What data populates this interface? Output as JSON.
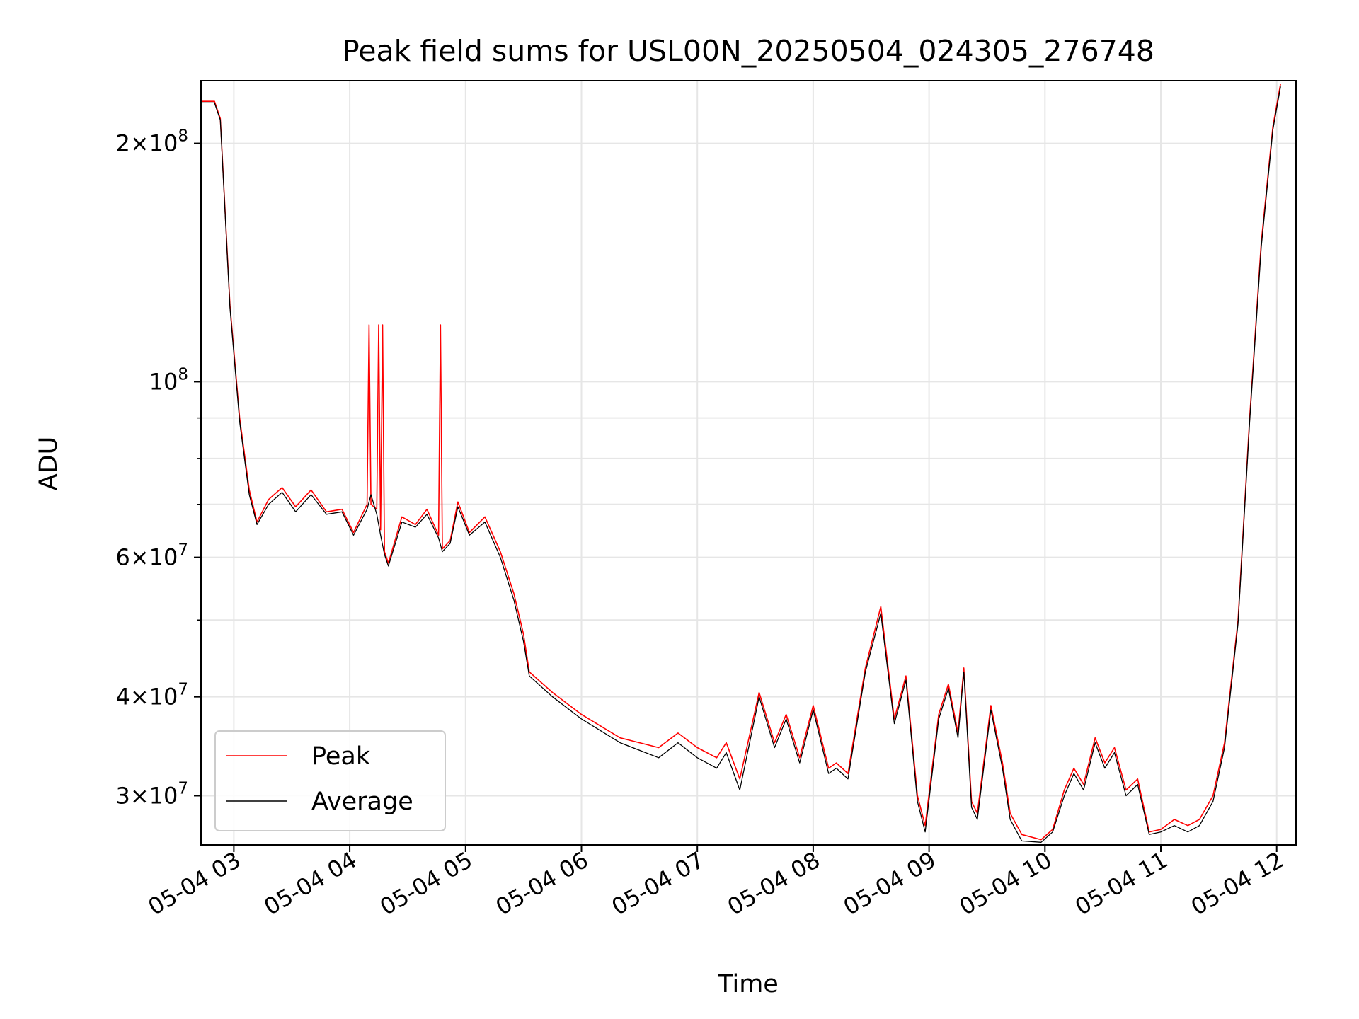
{
  "chart_data": {
    "type": "line",
    "title": "Peak field sums for USL00N_20250504_024305_276748",
    "xlabel": "Time",
    "ylabel": "ADU",
    "y_scale": "log",
    "xlim": [
      "2025-05-04 02:43",
      "2025-05-04 12:10"
    ],
    "ylim": [
      26000000,
      240000000
    ],
    "grid": true,
    "legend_placement": "lower-left",
    "x_tick_labels": [
      "05-04 03",
      "05-04 04",
      "05-04 05",
      "05-04 06",
      "05-04 07",
      "05-04 08",
      "05-04 09",
      "05-04 10",
      "05-04 11",
      "05-04 12"
    ],
    "y_tick_labels": [
      {
        "value": 200000000,
        "mant": "2",
        "exp": "8"
      },
      {
        "value": 100000000,
        "mant": "",
        "exp": "8"
      },
      {
        "value": 60000000,
        "mant": "6",
        "exp": "7"
      },
      {
        "value": 40000000,
        "mant": "4",
        "exp": "7"
      },
      {
        "value": 30000000,
        "mant": "3",
        "exp": "7"
      }
    ],
    "series": [
      {
        "name": "Peak",
        "color": "#ff0000",
        "points": [
          [
            "2025-05-04 02:43",
            226000000
          ],
          [
            "2025-05-04 02:50",
            226000000
          ],
          [
            "2025-05-04 02:53",
            215000000
          ],
          [
            "2025-05-04 02:58",
            125000000
          ],
          [
            "2025-05-04 03:03",
            90000000
          ],
          [
            "2025-05-04 03:08",
            73000000
          ],
          [
            "2025-05-04 03:12",
            66500000
          ],
          [
            "2025-05-04 03:18",
            71000000
          ],
          [
            "2025-05-04 03:25",
            73500000
          ],
          [
            "2025-05-04 03:32",
            69500000
          ],
          [
            "2025-05-04 03:40",
            73000000
          ],
          [
            "2025-05-04 03:48",
            68500000
          ],
          [
            "2025-05-04 03:56",
            69000000
          ],
          [
            "2025-05-04 04:02",
            64500000
          ],
          [
            "2025-05-04 04:09",
            70000000
          ],
          [
            "2025-05-04 04:10",
            118000000
          ],
          [
            "2025-05-04 04:11",
            70000000
          ],
          [
            "2025-05-04 04:14",
            69000000
          ],
          [
            "2025-05-04 04:15",
            118000000
          ],
          [
            "2025-05-04 04:16",
            65000000
          ],
          [
            "2025-05-04 04:17",
            118000000
          ],
          [
            "2025-05-04 04:18",
            61000000
          ],
          [
            "2025-05-04 04:20",
            59000000
          ],
          [
            "2025-05-04 04:27",
            67500000
          ],
          [
            "2025-05-04 04:34",
            66000000
          ],
          [
            "2025-05-04 04:40",
            69000000
          ],
          [
            "2025-05-04 04:46",
            64000000
          ],
          [
            "2025-05-04 04:47",
            118000000
          ],
          [
            "2025-05-04 04:48",
            61500000
          ],
          [
            "2025-05-04 04:52",
            63000000
          ],
          [
            "2025-05-04 04:56",
            70500000
          ],
          [
            "2025-05-04 05:02",
            64500000
          ],
          [
            "2025-05-04 05:10",
            67500000
          ],
          [
            "2025-05-04 05:18",
            61000000
          ],
          [
            "2025-05-04 05:25",
            54000000
          ],
          [
            "2025-05-04 05:30",
            48000000
          ],
          [
            "2025-05-04 05:33",
            43000000
          ],
          [
            "2025-05-04 05:45",
            40500000
          ],
          [
            "2025-05-04 06:00",
            38000000
          ],
          [
            "2025-05-04 06:20",
            35500000
          ],
          [
            "2025-05-04 06:40",
            34500000
          ],
          [
            "2025-05-04 06:50",
            36000000
          ],
          [
            "2025-05-04 07:00",
            34500000
          ],
          [
            "2025-05-04 07:10",
            33500000
          ],
          [
            "2025-05-04 07:15",
            35000000
          ],
          [
            "2025-05-04 07:22",
            31500000
          ],
          [
            "2025-05-04 07:32",
            40500000
          ],
          [
            "2025-05-04 07:40",
            35000000
          ],
          [
            "2025-05-04 07:46",
            38000000
          ],
          [
            "2025-05-04 07:53",
            33500000
          ],
          [
            "2025-05-04 08:00",
            39000000
          ],
          [
            "2025-05-04 08:08",
            32500000
          ],
          [
            "2025-05-04 08:12",
            33000000
          ],
          [
            "2025-05-04 08:18",
            32000000
          ],
          [
            "2025-05-04 08:27",
            43500000
          ],
          [
            "2025-05-04 08:35",
            52000000
          ],
          [
            "2025-05-04 08:42",
            37500000
          ],
          [
            "2025-05-04 08:48",
            42500000
          ],
          [
            "2025-05-04 08:54",
            30000000
          ],
          [
            "2025-05-04 08:58",
            27500000
          ],
          [
            "2025-05-04 09:05",
            38000000
          ],
          [
            "2025-05-04 09:10",
            41500000
          ],
          [
            "2025-05-04 09:15",
            36000000
          ],
          [
            "2025-05-04 09:18",
            43500000
          ],
          [
            "2025-05-04 09:22",
            29500000
          ],
          [
            "2025-05-04 09:25",
            28500000
          ],
          [
            "2025-05-04 09:32",
            39000000
          ],
          [
            "2025-05-04 09:38",
            33000000
          ],
          [
            "2025-05-04 09:42",
            28500000
          ],
          [
            "2025-05-04 09:48",
            26800000
          ],
          [
            "2025-05-04 09:58",
            26400000
          ],
          [
            "2025-05-04 10:04",
            27200000
          ],
          [
            "2025-05-04 10:10",
            30500000
          ],
          [
            "2025-05-04 10:15",
            32500000
          ],
          [
            "2025-05-04 10:20",
            31000000
          ],
          [
            "2025-05-04 10:26",
            35500000
          ],
          [
            "2025-05-04 10:31",
            33000000
          ],
          [
            "2025-05-04 10:36",
            34500000
          ],
          [
            "2025-05-04 10:42",
            30500000
          ],
          [
            "2025-05-04 10:48",
            31500000
          ],
          [
            "2025-05-04 10:54",
            27000000
          ],
          [
            "2025-05-04 11:00",
            27200000
          ],
          [
            "2025-05-04 11:07",
            28000000
          ],
          [
            "2025-05-04 11:14",
            27500000
          ],
          [
            "2025-05-04 11:20",
            28000000
          ],
          [
            "2025-05-04 11:27",
            30000000
          ],
          [
            "2025-05-04 11:33",
            35000000
          ],
          [
            "2025-05-04 11:40",
            50000000
          ],
          [
            "2025-05-04 11:46",
            90000000
          ],
          [
            "2025-05-04 11:52",
            150000000
          ],
          [
            "2025-05-04 11:58",
            210000000
          ],
          [
            "2025-05-04 12:02",
            238000000
          ]
        ]
      },
      {
        "name": "Average",
        "color": "#000000",
        "points": [
          [
            "2025-05-04 02:43",
            225000000
          ],
          [
            "2025-05-04 02:50",
            225000000
          ],
          [
            "2025-05-04 02:53",
            214000000
          ],
          [
            "2025-05-04 02:58",
            124000000
          ],
          [
            "2025-05-04 03:03",
            89000000
          ],
          [
            "2025-05-04 03:08",
            72000000
          ],
          [
            "2025-05-04 03:12",
            66000000
          ],
          [
            "2025-05-04 03:18",
            70000000
          ],
          [
            "2025-05-04 03:25",
            72500000
          ],
          [
            "2025-05-04 03:32",
            68500000
          ],
          [
            "2025-05-04 03:40",
            72000000
          ],
          [
            "2025-05-04 03:48",
            68000000
          ],
          [
            "2025-05-04 03:56",
            68500000
          ],
          [
            "2025-05-04 04:02",
            64000000
          ],
          [
            "2025-05-04 04:09",
            69000000
          ],
          [
            "2025-05-04 04:11",
            72000000
          ],
          [
            "2025-05-04 04:14",
            68000000
          ],
          [
            "2025-05-04 04:16",
            64000000
          ],
          [
            "2025-05-04 04:18",
            60500000
          ],
          [
            "2025-05-04 04:20",
            58500000
          ],
          [
            "2025-05-04 04:27",
            66500000
          ],
          [
            "2025-05-04 04:34",
            65500000
          ],
          [
            "2025-05-04 04:40",
            68000000
          ],
          [
            "2025-05-04 04:46",
            63500000
          ],
          [
            "2025-05-04 04:48",
            61000000
          ],
          [
            "2025-05-04 04:52",
            62500000
          ],
          [
            "2025-05-04 04:56",
            69500000
          ],
          [
            "2025-05-04 05:02",
            64000000
          ],
          [
            "2025-05-04 05:10",
            66500000
          ],
          [
            "2025-05-04 05:18",
            60000000
          ],
          [
            "2025-05-04 05:25",
            53000000
          ],
          [
            "2025-05-04 05:30",
            47000000
          ],
          [
            "2025-05-04 05:33",
            42500000
          ],
          [
            "2025-05-04 05:45",
            40000000
          ],
          [
            "2025-05-04 06:00",
            37500000
          ],
          [
            "2025-05-04 06:20",
            35000000
          ],
          [
            "2025-05-04 06:40",
            33500000
          ],
          [
            "2025-05-04 06:50",
            35000000
          ],
          [
            "2025-05-04 07:00",
            33500000
          ],
          [
            "2025-05-04 07:10",
            32500000
          ],
          [
            "2025-05-04 07:15",
            34000000
          ],
          [
            "2025-05-04 07:22",
            30500000
          ],
          [
            "2025-05-04 07:32",
            40000000
          ],
          [
            "2025-05-04 07:40",
            34500000
          ],
          [
            "2025-05-04 07:46",
            37500000
          ],
          [
            "2025-05-04 07:53",
            33000000
          ],
          [
            "2025-05-04 08:00",
            38500000
          ],
          [
            "2025-05-04 08:08",
            32000000
          ],
          [
            "2025-05-04 08:12",
            32500000
          ],
          [
            "2025-05-04 08:18",
            31500000
          ],
          [
            "2025-05-04 08:27",
            43000000
          ],
          [
            "2025-05-04 08:35",
            51000000
          ],
          [
            "2025-05-04 08:42",
            37000000
          ],
          [
            "2025-05-04 08:48",
            42000000
          ],
          [
            "2025-05-04 08:54",
            29500000
          ],
          [
            "2025-05-04 08:58",
            27000000
          ],
          [
            "2025-05-04 09:05",
            37500000
          ],
          [
            "2025-05-04 09:10",
            41000000
          ],
          [
            "2025-05-04 09:15",
            35500000
          ],
          [
            "2025-05-04 09:18",
            43000000
          ],
          [
            "2025-05-04 09:22",
            29000000
          ],
          [
            "2025-05-04 09:25",
            28000000
          ],
          [
            "2025-05-04 09:32",
            38500000
          ],
          [
            "2025-05-04 09:38",
            32500000
          ],
          [
            "2025-05-04 09:42",
            28000000
          ],
          [
            "2025-05-04 09:48",
            26300000
          ],
          [
            "2025-05-04 09:58",
            26200000
          ],
          [
            "2025-05-04 10:04",
            27000000
          ],
          [
            "2025-05-04 10:10",
            30000000
          ],
          [
            "2025-05-04 10:15",
            32000000
          ],
          [
            "2025-05-04 10:20",
            30500000
          ],
          [
            "2025-05-04 10:26",
            35000000
          ],
          [
            "2025-05-04 10:31",
            32500000
          ],
          [
            "2025-05-04 10:36",
            34000000
          ],
          [
            "2025-05-04 10:42",
            30000000
          ],
          [
            "2025-05-04 10:48",
            31000000
          ],
          [
            "2025-05-04 10:54",
            26800000
          ],
          [
            "2025-05-04 11:00",
            27000000
          ],
          [
            "2025-05-04 11:07",
            27500000
          ],
          [
            "2025-05-04 11:14",
            27000000
          ],
          [
            "2025-05-04 11:20",
            27500000
          ],
          [
            "2025-05-04 11:27",
            29500000
          ],
          [
            "2025-05-04 11:33",
            34500000
          ],
          [
            "2025-05-04 11:40",
            49500000
          ],
          [
            "2025-05-04 11:46",
            89000000
          ],
          [
            "2025-05-04 11:52",
            148000000
          ],
          [
            "2025-05-04 11:58",
            208000000
          ],
          [
            "2025-05-04 12:02",
            236000000
          ]
        ]
      }
    ]
  }
}
